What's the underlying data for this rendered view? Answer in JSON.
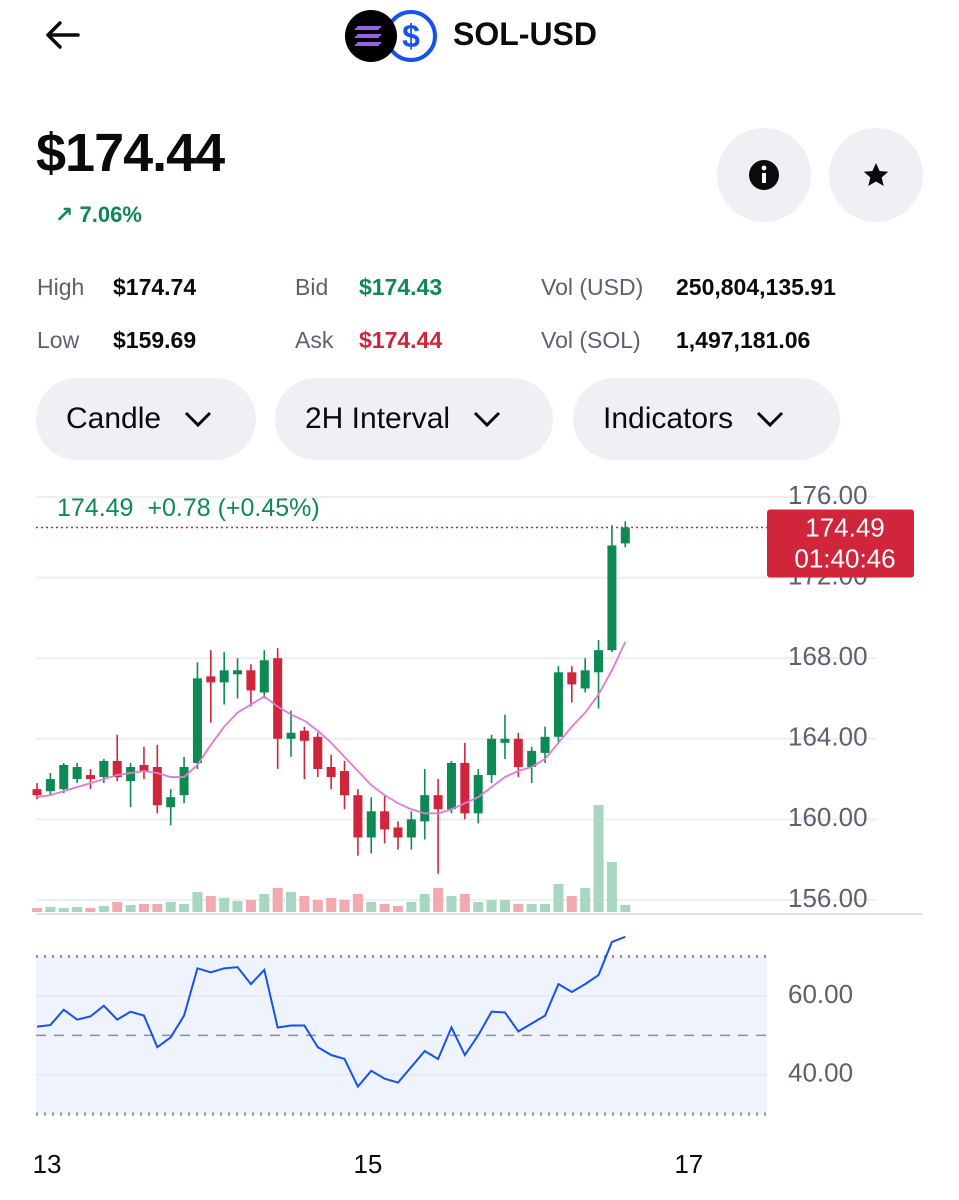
{
  "header": {
    "title": "SOL-USD"
  },
  "price": "$174.44",
  "change": "7.06%",
  "stats": [
    [
      {
        "label": "High",
        "value": "$174.74"
      },
      {
        "label": "Bid",
        "value": "$174.43"
      },
      {
        "label": "Vol (USD)",
        "value": "250,804,135.91"
      }
    ],
    [
      {
        "label": "Low",
        "value": "$159.69"
      },
      {
        "label": "Ask",
        "value": "$174.44"
      },
      {
        "label": "Vol (SOL)",
        "value": "1,497,181.06"
      }
    ]
  ],
  "controls": [
    "Candle",
    "2H Interval",
    "Indicators"
  ],
  "chart_data": [
    {
      "type": "candlestick",
      "legend": {
        "change": "+0.78",
        "change_pct": "(+0.45%)"
      },
      "last_price": 174.49,
      "countdown": "01:40:46",
      "up_color": "#0d8a53",
      "down_color": "#d1253b",
      "volume_up_color": "#a9d6c1",
      "volume_down_color": "#f2aab1",
      "ma_color": "#e07ad6",
      "open": [
        161.5,
        161.4,
        161.5,
        162.0,
        162.2,
        162.1,
        162.9,
        161.9,
        162.7,
        162.6,
        160.6,
        161.2,
        162.8,
        167.1,
        166.8,
        167.2,
        167.4,
        166.3,
        168.0,
        164.0,
        164.4,
        164.1,
        162.6,
        162.4,
        161.2,
        159.1,
        160.4,
        159.6,
        159.1,
        159.9,
        161.2,
        160.5,
        162.8,
        160.3,
        162.2,
        163.8,
        164.0,
        162.6,
        163.3,
        164.1,
        167.3,
        166.5,
        167.3,
        168.4,
        173.7
      ],
      "high": [
        161.8,
        162.3,
        162.8,
        162.8,
        162.5,
        163.0,
        164.2,
        162.8,
        163.6,
        163.7,
        161.5,
        163.1,
        167.8,
        168.4,
        168.3,
        168.0,
        167.7,
        168.4,
        168.5,
        165.4,
        164.6,
        164.3,
        163.2,
        162.9,
        161.5,
        161.1,
        161.2,
        159.9,
        160.4,
        162.5,
        162.0,
        162.9,
        163.8,
        162.5,
        164.2,
        165.2,
        164.3,
        163.6,
        164.6,
        167.6,
        167.6,
        168.0,
        168.9,
        174.6,
        174.8
      ],
      "low": [
        161.0,
        161.2,
        161.3,
        161.8,
        161.5,
        161.8,
        161.9,
        160.6,
        162.0,
        160.3,
        159.7,
        160.8,
        162.5,
        164.8,
        165.7,
        166.0,
        165.6,
        166.0,
        162.5,
        163.1,
        162.0,
        162.1,
        161.5,
        160.5,
        158.2,
        158.3,
        158.8,
        158.5,
        158.5,
        159.0,
        157.3,
        160.3,
        160.0,
        159.8,
        161.8,
        163.0,
        162.1,
        161.8,
        162.8,
        163.8,
        165.8,
        166.3,
        165.5,
        168.3,
        173.5
      ],
      "close": [
        161.2,
        162.0,
        162.7,
        162.6,
        162.0,
        162.9,
        162.1,
        162.6,
        162.4,
        160.7,
        161.1,
        162.6,
        167.0,
        166.8,
        167.4,
        167.4,
        166.4,
        167.9,
        164.0,
        164.3,
        163.9,
        162.5,
        162.1,
        161.2,
        159.1,
        160.4,
        159.5,
        159.1,
        160.0,
        161.2,
        160.5,
        162.8,
        160.3,
        162.2,
        164.0,
        164.0,
        162.6,
        163.4,
        164.1,
        167.3,
        166.7,
        167.4,
        168.4,
        173.6,
        174.49
      ],
      "volume": [
        4,
        5,
        4,
        5,
        4,
        6,
        10,
        7,
        8,
        8,
        10,
        8,
        20,
        16,
        14,
        11,
        12,
        18,
        24,
        20,
        16,
        12,
        14,
        12,
        18,
        10,
        8,
        6,
        10,
        18,
        24,
        16,
        18,
        10,
        12,
        12,
        8,
        8,
        8,
        28,
        16,
        24,
        107,
        50,
        7
      ],
      "vlim": [
        0,
        110
      ],
      "ma": [
        161.1,
        161.2,
        161.4,
        161.6,
        161.8,
        162.0,
        162.2,
        162.3,
        162.4,
        162.3,
        162.1,
        162.1,
        162.7,
        163.7,
        164.6,
        165.3,
        165.7,
        166.1,
        165.6,
        165.2,
        164.9,
        164.4,
        163.8,
        163.1,
        162.4,
        161.7,
        161.2,
        160.8,
        160.5,
        160.3,
        160.3,
        160.5,
        160.8,
        161.1,
        161.6,
        162.1,
        162.4,
        162.6,
        163.0,
        163.8,
        164.6,
        165.3,
        166.2,
        167.4,
        168.8
      ],
      "ylim": [
        155.4,
        176.6
      ],
      "yticks": [
        {
          "value": 176,
          "label": "176.00"
        },
        {
          "value": 172,
          "label": "172.00"
        },
        {
          "value": 168,
          "label": "168.00"
        },
        {
          "value": 164,
          "label": "164.00"
        },
        {
          "value": 160,
          "label": "160.00"
        },
        {
          "value": 156,
          "label": "156.00"
        }
      ],
      "grid": true,
      "xticks": [
        {
          "value": 0.75,
          "label": "13"
        },
        {
          "value": 24.75,
          "label": "15"
        },
        {
          "value": 48.75,
          "label": "17"
        }
      ]
    },
    {
      "type": "line",
      "color": "#1652f0",
      "values": [
        52.2,
        52.6,
        56.5,
        54,
        54.8,
        57.5,
        54,
        56,
        55,
        47,
        49.5,
        55,
        67,
        66,
        67,
        67.3,
        63,
        66.6,
        52,
        52.5,
        52.5,
        47,
        45,
        44,
        37,
        41,
        39,
        38,
        42,
        46,
        44,
        52,
        45,
        50,
        56,
        55.8,
        51,
        53,
        55,
        63,
        61,
        63,
        65.3,
        73.7,
        75
      ],
      "ylim": [
        28,
        78
      ],
      "yticks": [
        {
          "value": 60,
          "label": "60.00"
        },
        {
          "value": 40,
          "label": "40.00"
        }
      ],
      "bands": [
        70,
        30
      ],
      "midline": 50
    }
  ]
}
